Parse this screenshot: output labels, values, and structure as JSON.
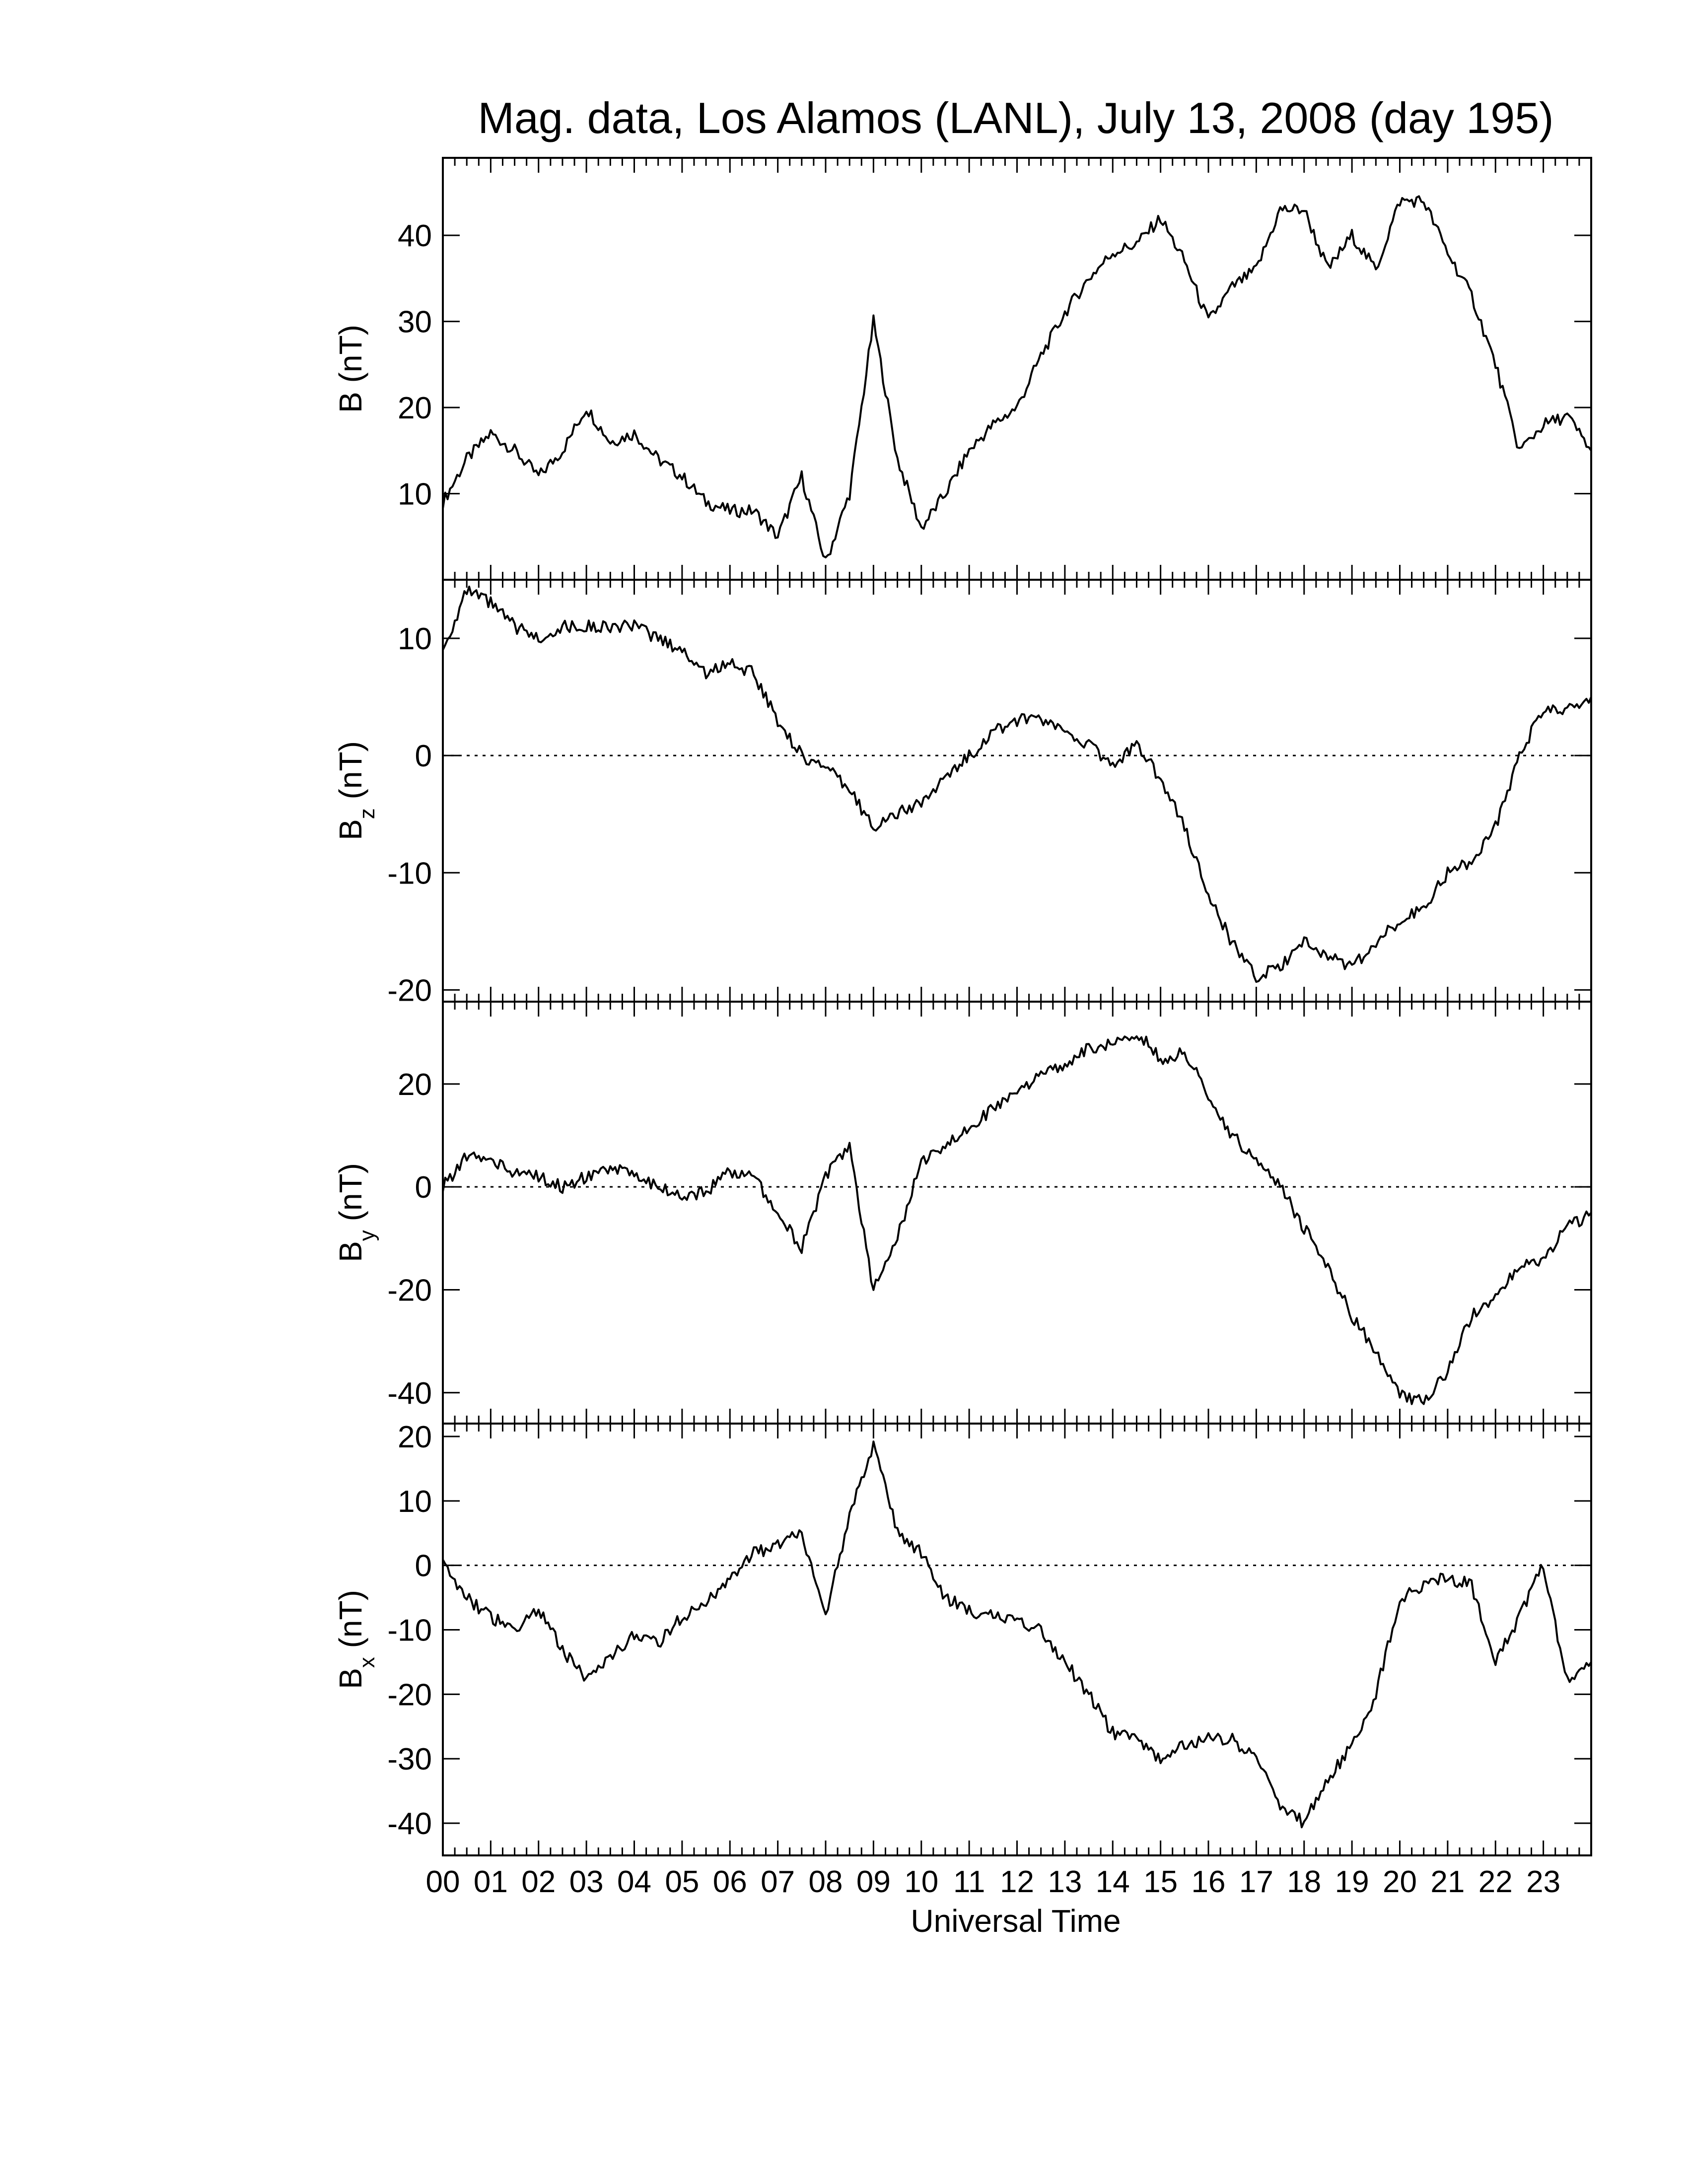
{
  "title": "Mag. data, Los Alamos (LANL), July 13, 2008 (day 195)",
  "xlabel": "Universal Time",
  "line_color": "#000000",
  "chart_data": [
    {
      "type": "line",
      "panel": "B",
      "ylabel": "B (nT)",
      "ylabel_main": "B (nT)",
      "ylabel_sub": "",
      "ylim": [
        0,
        49
      ],
      "yticks": [
        10,
        20,
        30,
        40
      ],
      "zero_line": false,
      "xlim": [
        0,
        24
      ],
      "x": [
        0.0,
        0.5,
        1.0,
        1.5,
        2.0,
        2.5,
        3.0,
        3.5,
        4.0,
        4.5,
        5.0,
        5.5,
        6.0,
        6.5,
        7.0,
        7.5,
        8.0,
        8.5,
        9.0,
        9.5,
        10.0,
        10.5,
        11.0,
        11.5,
        12.0,
        12.5,
        13.0,
        13.5,
        14.0,
        14.5,
        15.0,
        15.5,
        16.0,
        16.5,
        17.0,
        17.5,
        18.0,
        18.5,
        19.0,
        19.5,
        20.0,
        20.5,
        21.0,
        21.5,
        22.0,
        22.5,
        23.0,
        23.5,
        24.0
      ],
      "values": [
        9,
        14,
        17,
        15,
        12,
        15,
        20,
        16,
        17,
        14,
        12,
        9,
        8,
        8,
        5,
        12,
        2,
        10,
        30,
        14,
        6,
        10,
        15,
        18,
        20,
        26,
        31,
        35,
        38,
        39,
        42,
        37,
        30,
        34,
        36,
        43,
        43,
        36,
        40,
        36,
        44,
        44,
        38,
        33,
        25,
        15,
        18,
        19,
        15
      ]
    },
    {
      "type": "line",
      "panel": "Bz",
      "ylabel": "Bz (nT)",
      "ylabel_main": "B",
      "ylabel_sub": "z",
      "ylabel_unit": "(nT)",
      "ylim": [
        -21,
        15
      ],
      "yticks": [
        -20,
        -10,
        0,
        10
      ],
      "zero_line": true,
      "xlim": [
        0,
        24
      ],
      "x": [
        0.0,
        0.5,
        1.0,
        1.5,
        2.0,
        2.5,
        3.0,
        3.5,
        4.0,
        4.5,
        5.0,
        5.5,
        6.0,
        6.5,
        7.0,
        7.5,
        8.0,
        8.5,
        9.0,
        9.5,
        10.0,
        10.5,
        11.0,
        11.5,
        12.0,
        12.5,
        13.0,
        13.5,
        14.0,
        14.5,
        15.0,
        15.5,
        16.0,
        16.5,
        17.0,
        17.5,
        18.0,
        18.5,
        19.0,
        19.5,
        20.0,
        20.5,
        21.0,
        21.5,
        22.0,
        22.5,
        23.0,
        23.5,
        24.0
      ],
      "values": [
        9,
        14,
        13,
        11,
        10,
        11,
        11,
        11,
        11,
        10,
        9,
        7,
        8,
        7,
        3,
        0,
        -1,
        -3,
        -6,
        -5,
        -4,
        -2,
        0,
        2,
        3,
        3,
        2,
        1,
        -1,
        1,
        -2,
        -6,
        -12,
        -16,
        -19,
        -18,
        -16,
        -17,
        -18,
        -16,
        -14,
        -13,
        -10,
        -9,
        -6,
        0,
        4,
        4,
        5
      ]
    },
    {
      "type": "line",
      "panel": "By",
      "ylabel": "By (nT)",
      "ylabel_main": "B",
      "ylabel_sub": "y",
      "ylabel_unit": "(nT)",
      "ylim": [
        -46,
        36
      ],
      "yticks": [
        -40,
        -20,
        0,
        20
      ],
      "zero_line": true,
      "xlim": [
        0,
        24
      ],
      "x": [
        0.0,
        0.5,
        1.0,
        1.5,
        2.0,
        2.5,
        3.0,
        3.5,
        4.0,
        4.5,
        5.0,
        5.5,
        6.0,
        6.5,
        7.0,
        7.5,
        8.0,
        8.5,
        9.0,
        9.5,
        10.0,
        10.5,
        11.0,
        11.5,
        12.0,
        12.5,
        13.0,
        13.5,
        14.0,
        14.5,
        15.0,
        15.5,
        16.0,
        16.5,
        17.0,
        17.5,
        18.0,
        18.5,
        19.0,
        19.5,
        20.0,
        20.5,
        21.0,
        21.5,
        22.0,
        22.5,
        23.0,
        23.5,
        24.0
      ],
      "values": [
        0,
        6,
        5,
        3,
        2,
        0,
        2,
        3,
        3,
        0,
        -2,
        -1,
        3,
        2,
        -5,
        -12,
        2,
        8,
        -20,
        -10,
        5,
        8,
        12,
        15,
        18,
        22,
        24,
        27,
        28,
        30,
        25,
        26,
        18,
        10,
        5,
        0,
        -8,
        -16,
        -25,
        -32,
        -40,
        -42,
        -36,
        -25,
        -22,
        -15,
        -14,
        -8,
        -5
      ]
    },
    {
      "type": "line",
      "panel": "Bx",
      "ylabel": "Bx (nT)",
      "ylabel_main": "B",
      "ylabel_sub": "x",
      "ylabel_unit": "(nT)",
      "ylim": [
        -45,
        22
      ],
      "yticks": [
        -40,
        -30,
        -20,
        -10,
        0,
        10,
        20
      ],
      "zero_line": true,
      "xlim": [
        0,
        24
      ],
      "x": [
        0.0,
        0.5,
        1.0,
        1.5,
        2.0,
        2.5,
        3.0,
        3.5,
        4.0,
        4.5,
        5.0,
        5.5,
        6.0,
        6.5,
        7.0,
        7.5,
        8.0,
        8.5,
        9.0,
        9.5,
        10.0,
        10.5,
        11.0,
        11.5,
        12.0,
        12.5,
        13.0,
        13.5,
        14.0,
        14.5,
        15.0,
        15.5,
        16.0,
        16.5,
        17.0,
        17.5,
        18.0,
        18.5,
        19.0,
        19.5,
        20.0,
        20.5,
        21.0,
        21.5,
        22.0,
        22.5,
        23.0,
        23.5,
        24.0
      ],
      "values": [
        0,
        -5,
        -8,
        -10,
        -7,
        -13,
        -18,
        -14,
        -11,
        -12,
        -8,
        -6,
        -2,
        2,
        3,
        5,
        -8,
        8,
        19,
        5,
        2,
        -5,
        -7,
        -8,
        -9,
        -10,
        -15,
        -20,
        -26,
        -27,
        -30,
        -28,
        -27,
        -27,
        -30,
        -37,
        -40,
        -33,
        -28,
        -20,
        -5,
        -3,
        -2,
        -3,
        -15,
        -8,
        0,
        -18,
        -15
      ]
    }
  ],
  "xaxis": {
    "tick_labels": [
      "00",
      "01",
      "02",
      "03",
      "04",
      "05",
      "06",
      "07",
      "08",
      "09",
      "10",
      "11",
      "12",
      "13",
      "14",
      "15",
      "16",
      "17",
      "18",
      "19",
      "20",
      "21",
      "22",
      "23"
    ]
  }
}
